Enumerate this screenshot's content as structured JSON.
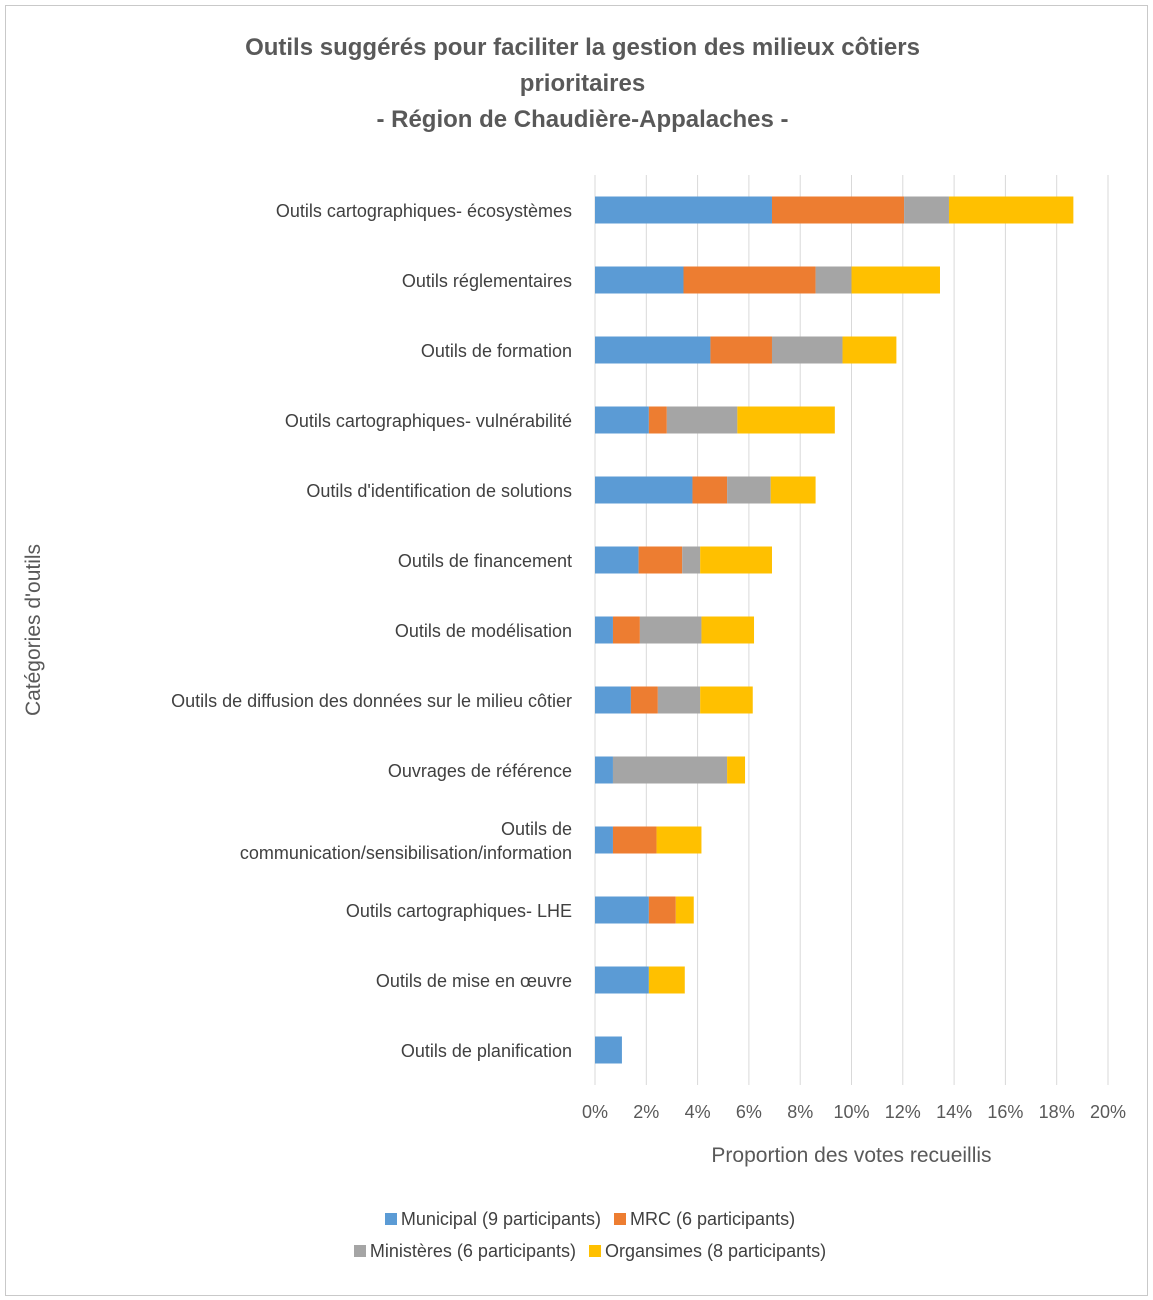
{
  "chart_data": {
    "type": "bar",
    "orientation": "horizontal",
    "stacked": true,
    "title_lines": [
      "Outils suggérés pour faciliter la gestion des milieux côtiers",
      "prioritaires",
      "- Région de Chaudière-Appalaches -"
    ],
    "xlabel": "Proportion des votes recueillis",
    "ylabel": "Catégories d'outils",
    "xlim": [
      0,
      20
    ],
    "x_ticks": [
      "0%",
      "2%",
      "4%",
      "6%",
      "8%",
      "10%",
      "12%",
      "14%",
      "16%",
      "18%",
      "20%"
    ],
    "grid": "vertical",
    "legend_position": "bottom",
    "categories": [
      [
        "Outils cartographiques- écosystèmes"
      ],
      [
        "Outils réglementaires"
      ],
      [
        "Outils de formation"
      ],
      [
        "Outils cartographiques- vulnérabilité"
      ],
      [
        "Outils d'identification de solutions"
      ],
      [
        "Outils de financement"
      ],
      [
        "Outils de modélisation"
      ],
      [
        "Outils de diffusion des données sur le milieu côtier"
      ],
      [
        "Ouvrages de référence"
      ],
      [
        "Outils de",
        "communication/sensibilisation/information"
      ],
      [
        "Outils cartographiques- LHE"
      ],
      [
        "Outils de mise en œuvre"
      ],
      [
        "Outils de planification"
      ]
    ],
    "series": [
      {
        "name": "Municipal (9 participants)",
        "color": "#5B9BD5",
        "values": [
          6.9,
          3.45,
          4.5,
          2.1,
          3.8,
          1.7,
          0.7,
          1.4,
          0.7,
          0.7,
          2.1,
          2.1,
          1.05
        ]
      },
      {
        "name": "MRC (6 participants)",
        "color": "#ED7D31",
        "values": [
          5.15,
          5.15,
          2.4,
          0.7,
          1.35,
          1.7,
          1.05,
          1.05,
          0,
          1.7,
          1.05,
          0,
          0
        ]
      },
      {
        "name": "Ministères (6 participants)",
        "color": "#A5A5A5",
        "values": [
          1.75,
          1.4,
          2.75,
          2.75,
          1.7,
          0.7,
          2.4,
          1.65,
          4.45,
          0,
          0,
          0,
          0
        ]
      },
      {
        "name": "Organsimes (8 participants)",
        "color": "#FFC000",
        "values": [
          4.85,
          3.45,
          2.1,
          3.8,
          1.75,
          2.8,
          2.05,
          2.05,
          0.7,
          1.75,
          0.7,
          1.4,
          0
        ]
      }
    ]
  }
}
